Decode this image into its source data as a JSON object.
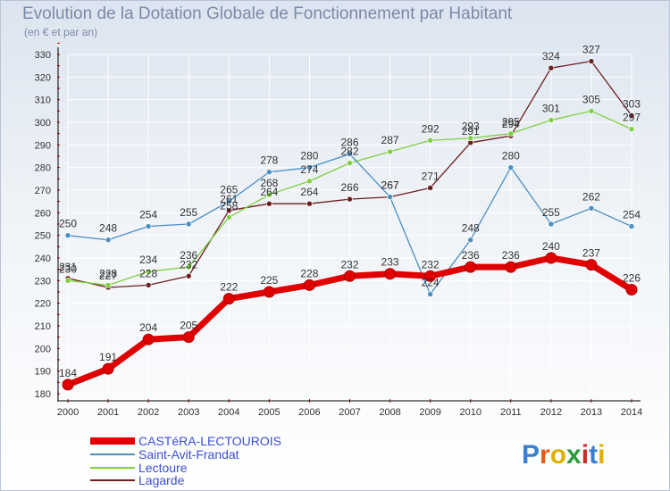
{
  "title": "Evolution de la Dotation Globale de Fonctionnement par Habitant",
  "subtitle": "(en € et par an)",
  "logo_text": "Proxiti",
  "chart_data": {
    "type": "line",
    "title": "Evolution de la Dotation Globale de Fonctionnement par Habitant",
    "ylabel": "(en € et par an)",
    "xlabel": "",
    "ylim": [
      180,
      330
    ],
    "yticks": [
      180,
      190,
      200,
      210,
      220,
      230,
      240,
      250,
      260,
      270,
      280,
      290,
      300,
      310,
      320,
      330
    ],
    "categories": [
      "2000",
      "2001",
      "2002",
      "2003",
      "2004",
      "2005",
      "2006",
      "2007",
      "2008",
      "2009",
      "2010",
      "2011",
      "2012",
      "2013",
      "2014"
    ],
    "series": [
      {
        "name": "CASTéRA-LECTOUROIS",
        "color": "#e00000",
        "values": [
          184,
          191,
          204,
          205,
          222,
          225,
          228,
          232,
          233,
          232,
          236,
          236,
          240,
          237,
          226
        ]
      },
      {
        "name": "Saint-Avit-Frandat",
        "color": "#4a8ec2",
        "values": [
          250,
          248,
          254,
          255,
          265,
          278,
          280,
          286,
          267,
          224,
          248,
          280,
          255,
          262,
          254
        ]
      },
      {
        "name": "Lectoure",
        "color": "#7fcf3f",
        "values": [
          230,
          228,
          234,
          236,
          258,
          268,
          274,
          282,
          287,
          292,
          293,
          295,
          301,
          305,
          297
        ]
      },
      {
        "name": "Lagarde",
        "color": "#6b1f1f",
        "values": [
          231,
          227,
          228,
          232,
          261,
          264,
          264,
          266,
          267,
          271,
          291,
          294,
          324,
          327,
          303
        ]
      }
    ]
  }
}
